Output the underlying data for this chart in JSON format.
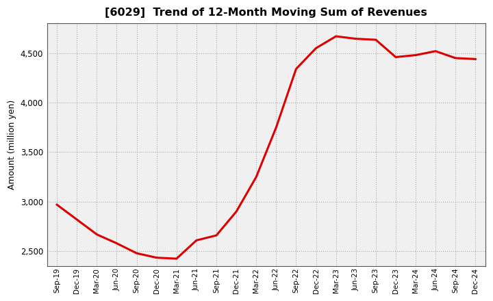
{
  "title": "[6029]  Trend of 12-Month Moving Sum of Revenues",
  "ylabel": "Amount (million yen)",
  "line_color": "#dd0000",
  "line_width": 2.2,
  "figure_bg": "#ffffff",
  "plot_bg": "#f0f0f0",
  "grid_color": "#999999",
  "ylim": [
    2350,
    4800
  ],
  "yticks": [
    2500,
    3000,
    3500,
    4000,
    4500
  ],
  "labels": [
    "Sep-19",
    "Dec-19",
    "Mar-20",
    "Jun-20",
    "Sep-20",
    "Dec-20",
    "Mar-21",
    "Jun-21",
    "Sep-21",
    "Dec-21",
    "Mar-22",
    "Jun-22",
    "Sep-22",
    "Dec-22",
    "Mar-23",
    "Jun-23",
    "Sep-23",
    "Dec-23",
    "Mar-24",
    "Jun-24",
    "Sep-24",
    "Dec-24"
  ],
  "values": [
    2970,
    2820,
    2670,
    2580,
    2480,
    2435,
    2425,
    2610,
    2660,
    2900,
    3250,
    3750,
    4340,
    4550,
    4670,
    4645,
    4635,
    4460,
    4480,
    4520,
    4450,
    4440
  ]
}
